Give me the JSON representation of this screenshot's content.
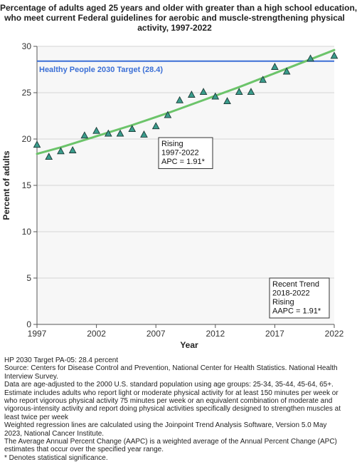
{
  "chart_data": {
    "type": "scatter",
    "title": [
      "Percentage of adults aged 25 years and older with greater than a high school education,",
      "who meet current Federal guidelines for aerobic and muscle-strengthening physical",
      "activity, 1997-2022"
    ],
    "xlabel": "Year",
    "ylabel": "Percent of adults",
    "xlim": [
      1997,
      2022
    ],
    "ylim": [
      0,
      30
    ],
    "x_ticks": [
      "1997",
      "2002",
      "2007",
      "2012",
      "2017",
      "2022"
    ],
    "y_ticks": [
      "0",
      "5",
      "10",
      "15",
      "20",
      "25",
      "30"
    ],
    "grid": true,
    "series": [
      {
        "kind": "observed",
        "marker": "triangle",
        "color": "#3a9c8c",
        "x": [
          1997,
          1998,
          1999,
          2000,
          2001,
          2002,
          2003,
          2004,
          2005,
          2006,
          2007,
          2008,
          2009,
          2010,
          2011,
          2012,
          2013,
          2014,
          2015,
          2016,
          2017,
          2018,
          2020,
          2022
        ],
        "y": [
          19.4,
          18.1,
          18.7,
          18.8,
          20.4,
          20.9,
          20.6,
          20.6,
          21.1,
          20.5,
          21.4,
          22.6,
          24.2,
          24.8,
          25.1,
          24.6,
          24.1,
          25.1,
          25.1,
          26.4,
          27.8,
          27.3,
          28.7,
          29.0
        ]
      },
      {
        "kind": "regression",
        "color": "#6cc46a",
        "x": [
          1997,
          1999,
          2002,
          2005,
          2008,
          2011,
          2014,
          2017,
          2020,
          2022
        ],
        "y": [
          18.4,
          19.1,
          20.3,
          21.5,
          22.8,
          24.2,
          25.6,
          27.1,
          28.6,
          29.6
        ]
      }
    ],
    "target_line": {
      "value": 28.4,
      "label": "Healthy People 2030 Target (28.4)",
      "color": "#3b6fd6"
    },
    "annotations": [
      {
        "lines": [
          "Rising",
          "1997-2022",
          "APC =  1.91*"
        ]
      },
      {
        "lines": [
          "Recent Trend",
          "2018-2022",
          "Rising",
          "AAPC =  1.91*"
        ]
      }
    ]
  },
  "notes": [
    "HP 2030 Target PA-05: 28.4 percent",
    "Source: Centers for Disease Control and Prevention, National Center for Health Statistics. National Health Interview Survey.",
    "Data are age-adjusted to the 2000 U.S. standard population using age groups: 25-34, 35-44, 45-64, 65+.",
    "Estimate includes adults who report light or moderate physical activity for at least 150 minutes per week or who report vigorous physical activity 75 minutes per week or an equivalent combination of moderate and vigorous-intensity activity and report doing physical activities specifically designed to strengthen muscles at least twice per week",
    "Weighted regression lines are calculated using the Joinpoint Trend Analysis Software, Version 5.0 May 2023, National Cancer Institute.",
    "The Average Annual Percent Change (AAPC) is a weighted average of the Annual Percent Change (APC) estimates that occur over the specified year range.",
    "* Denotes statistical significance."
  ]
}
